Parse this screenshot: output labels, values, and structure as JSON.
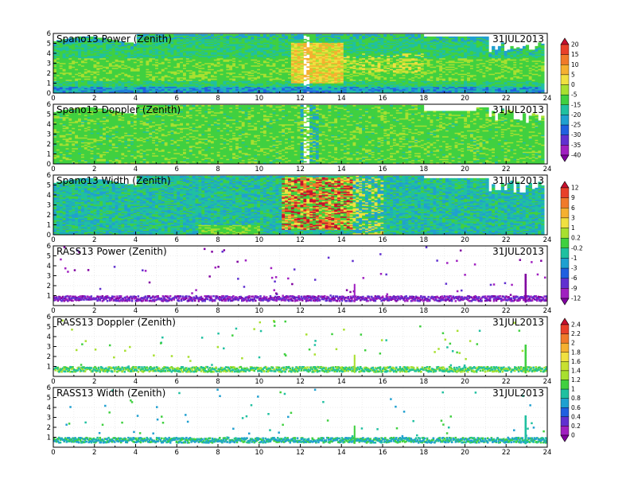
{
  "chart_data": [
    {
      "type": "heatmap",
      "title": "Spano13 Power (Zenith)",
      "date": "31JUL2013",
      "field": "power",
      "x_ticks": [
        "0",
        "2",
        "4",
        "6",
        "8",
        "10",
        "12",
        "14",
        "16",
        "18",
        "20",
        "22",
        "24"
      ],
      "y_ticks": [
        "0",
        "1",
        "2",
        "3",
        "4",
        "5",
        "6"
      ],
      "xlim": [
        0,
        24
      ],
      "ylim": [
        0,
        6
      ],
      "colorbar": "A",
      "grid": false
    },
    {
      "type": "heatmap",
      "title": "Spano13 Doppler (Zenith)",
      "date": "31JUL2013",
      "field": "doppler",
      "x_ticks": [
        "0",
        "2",
        "4",
        "6",
        "8",
        "10",
        "12",
        "14",
        "16",
        "18",
        "20",
        "22",
        "24"
      ],
      "y_ticks": [
        "0",
        "1",
        "2",
        "3",
        "4",
        "5",
        "6"
      ],
      "xlim": [
        0,
        24
      ],
      "ylim": [
        0,
        6
      ],
      "colorbar": "A",
      "grid": false
    },
    {
      "type": "heatmap",
      "title": "Spano13 Width (Zenith)",
      "date": "31JUL2013",
      "field": "width",
      "x_ticks": [
        "0",
        "2",
        "4",
        "6",
        "8",
        "10",
        "12",
        "14",
        "16",
        "18",
        "20",
        "22",
        "24"
      ],
      "y_ticks": [
        "0",
        "1",
        "2",
        "3",
        "4",
        "5",
        "6"
      ],
      "xlim": [
        0,
        24
      ],
      "ylim": [
        0,
        6
      ],
      "colorbar": "B",
      "grid": false
    },
    {
      "type": "scatter",
      "title": "RASS13 Power (Zenith)",
      "date": "31JUL2013",
      "field": "rass_power",
      "x_ticks": [
        "0",
        "2",
        "4",
        "6",
        "8",
        "10",
        "12",
        "14",
        "16",
        "18",
        "20",
        "22",
        "24"
      ],
      "y_ticks": [
        "1",
        "2",
        "3",
        "4",
        "5",
        "6"
      ],
      "xlim": [
        0,
        24
      ],
      "ylim": [
        0,
        6
      ],
      "colorbar": "B",
      "grid": true
    },
    {
      "type": "scatter",
      "title": "RASS13 Doppler (Zenith)",
      "date": "31JUL2013",
      "field": "rass_doppler",
      "x_ticks": [
        "0",
        "2",
        "4",
        "6",
        "8",
        "10",
        "12",
        "14",
        "16",
        "18",
        "20",
        "22",
        "24"
      ],
      "y_ticks": [
        "1",
        "2",
        "3",
        "4",
        "5",
        "6"
      ],
      "xlim": [
        0,
        24
      ],
      "ylim": [
        0,
        6
      ],
      "colorbar": "C",
      "grid": true
    },
    {
      "type": "scatter",
      "title": "RASS13 Width (Zenith)",
      "date": "31JUL2013",
      "field": "rass_width",
      "x_ticks": [
        "0",
        "2",
        "4",
        "6",
        "8",
        "10",
        "12",
        "14",
        "16",
        "18",
        "20",
        "22",
        "24"
      ],
      "y_ticks": [
        "1",
        "2",
        "3",
        "4",
        "5",
        "6"
      ],
      "xlim": [
        0,
        24
      ],
      "ylim": [
        0,
        6
      ],
      "colorbar": "C",
      "grid": true
    }
  ],
  "colorbars": {
    "A": {
      "labels": [
        "20",
        "15",
        "10",
        "5",
        "0",
        "-5",
        "-15",
        "-20",
        "-25",
        "-30",
        "-35",
        "-40"
      ],
      "colors": [
        "#c8102e",
        "#e8402a",
        "#f07a2a",
        "#f5b030",
        "#f0e040",
        "#a8e030",
        "#40d040",
        "#20c0a0",
        "#20a0d0",
        "#2060e0",
        "#6030d0",
        "#a020c0",
        "#8000a0"
      ]
    },
    "B": {
      "labels": [
        "12",
        "9",
        "6",
        "3",
        "1",
        "0.2",
        "-0.2",
        "-1",
        "-3",
        "-6",
        "-9",
        "-12"
      ],
      "colors": [
        "#c8102e",
        "#e8402a",
        "#f07a2a",
        "#f5b030",
        "#f0e040",
        "#a8e030",
        "#40d040",
        "#20c0a0",
        "#20a0d0",
        "#2060e0",
        "#6030d0",
        "#a020c0",
        "#8000a0"
      ]
    },
    "C": {
      "labels": [
        "2.4",
        "2.2",
        "2",
        "1.8",
        "1.6",
        "1.4",
        "1.2",
        "1",
        "0.8",
        "0.6",
        "0.4",
        "0.2",
        "0"
      ],
      "colors": [
        "#c8102e",
        "#e8402a",
        "#f07a2a",
        "#f5b030",
        "#f0e040",
        "#c8e030",
        "#a8e030",
        "#40d040",
        "#20c0a0",
        "#20a0d0",
        "#2060e0",
        "#6030d0",
        "#a020c0",
        "#8000a0"
      ]
    }
  }
}
